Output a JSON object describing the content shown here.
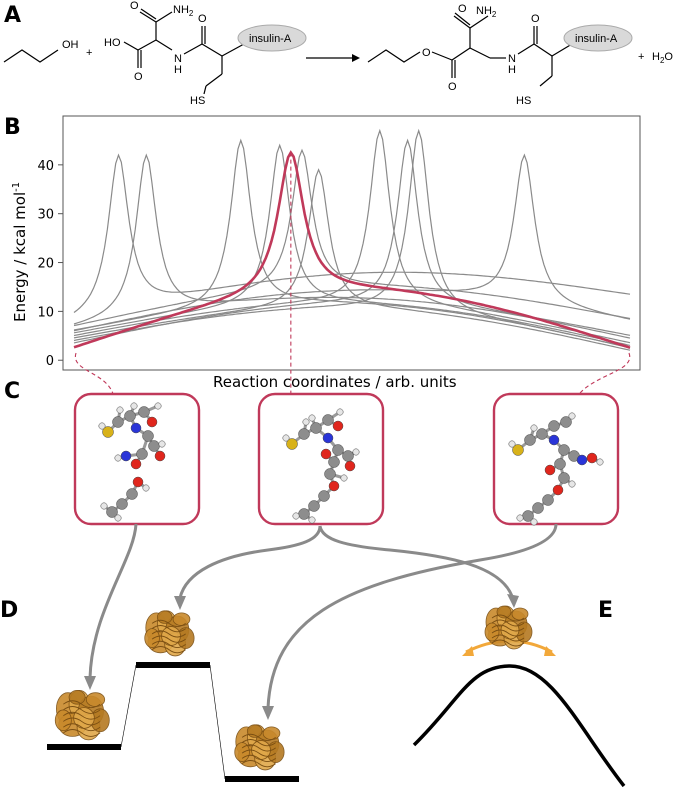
{
  "panels": {
    "a": "A",
    "b": "B",
    "c": "C",
    "d": "D",
    "e": "E"
  },
  "reaction": {
    "reactant_oh": "OH",
    "plus1": "+",
    "acid_ho": "HO",
    "nh2_left": "NH",
    "nh2_left_sub": "2",
    "o_left_1": "O",
    "o_left_2": "O",
    "o_left_3": "O",
    "nh_left": "H",
    "nh_left_n": "N",
    "hs_left": "HS",
    "insulin_left": "insulin-A",
    "nh2_right": "NH",
    "nh2_right_sub": "2",
    "o_right_1": "O",
    "o_right_2": "O",
    "o_right_3": "O",
    "o_right_ester": "O",
    "nh_right_n": "N",
    "nh_right": "H",
    "hs_right": "HS",
    "insulin_right": "insulin-A",
    "plus2": "+",
    "water": "H",
    "water_sub": "2",
    "water_o": "O"
  },
  "chart_data": {
    "type": "line",
    "title": "",
    "xlabel": "Reaction coordinates / arb. units",
    "ylabel_main": "Energy / kcal mol",
    "ylabel_sup": "-1",
    "ylim": [
      -2,
      50
    ],
    "xlim": [
      0,
      1
    ],
    "yticks": [
      0,
      10,
      20,
      30,
      40
    ],
    "grid": false,
    "legend": "none",
    "colors": {
      "series": "#8a8a8a",
      "highlight": "#c0395a",
      "box": "#c0395a"
    },
    "series": [
      {
        "values_desc": "gray",
        "start": 7.5,
        "end": 13.5,
        "peak_x": 0.08,
        "peak_y": 42
      },
      {
        "values_desc": "gray",
        "start": 6.5,
        "end": 4.5,
        "peak_x": 0.13,
        "peak_y": 42
      },
      {
        "values_desc": "gray",
        "start": 6.0,
        "end": 2.5,
        "peak_x": 0.3,
        "peak_y": 45
      },
      {
        "values_desc": "gray",
        "start": 5.5,
        "end": 3.0,
        "peak_x": 0.37,
        "peak_y": 44
      },
      {
        "values_desc": "gray",
        "start": 7.0,
        "end": 8.5,
        "peak_x": 0.41,
        "peak_y": 43
      },
      {
        "values_desc": "gray",
        "start": 4.5,
        "end": 2.0,
        "peak_x": 0.44,
        "peak_y": 39
      },
      {
        "values_desc": "gray",
        "start": 5.0,
        "end": 3.5,
        "peak_x": 0.55,
        "peak_y": 47
      },
      {
        "values_desc": "gray",
        "start": 3.5,
        "end": 5.0,
        "peak_x": 0.6,
        "peak_y": 45
      },
      {
        "values_desc": "gray",
        "start": 4.0,
        "end": 2.5,
        "peak_x": 0.62,
        "peak_y": 47
      },
      {
        "values_desc": "gray",
        "start": 6.0,
        "end": 8.0,
        "peak_x": 0.81,
        "peak_y": 42
      },
      {
        "values_desc": "highlight",
        "start": 2.5,
        "end": 2.5,
        "peak_x": 0.39,
        "peak_y": 42.5
      }
    ]
  },
  "structures": [
    {
      "id": "reactant"
    },
    {
      "id": "transition-state"
    },
    {
      "id": "product"
    }
  ],
  "energy_diagram": {
    "levels": [
      {
        "id": "level-reactant"
      },
      {
        "id": "level-ts"
      },
      {
        "id": "level-product"
      }
    ]
  }
}
